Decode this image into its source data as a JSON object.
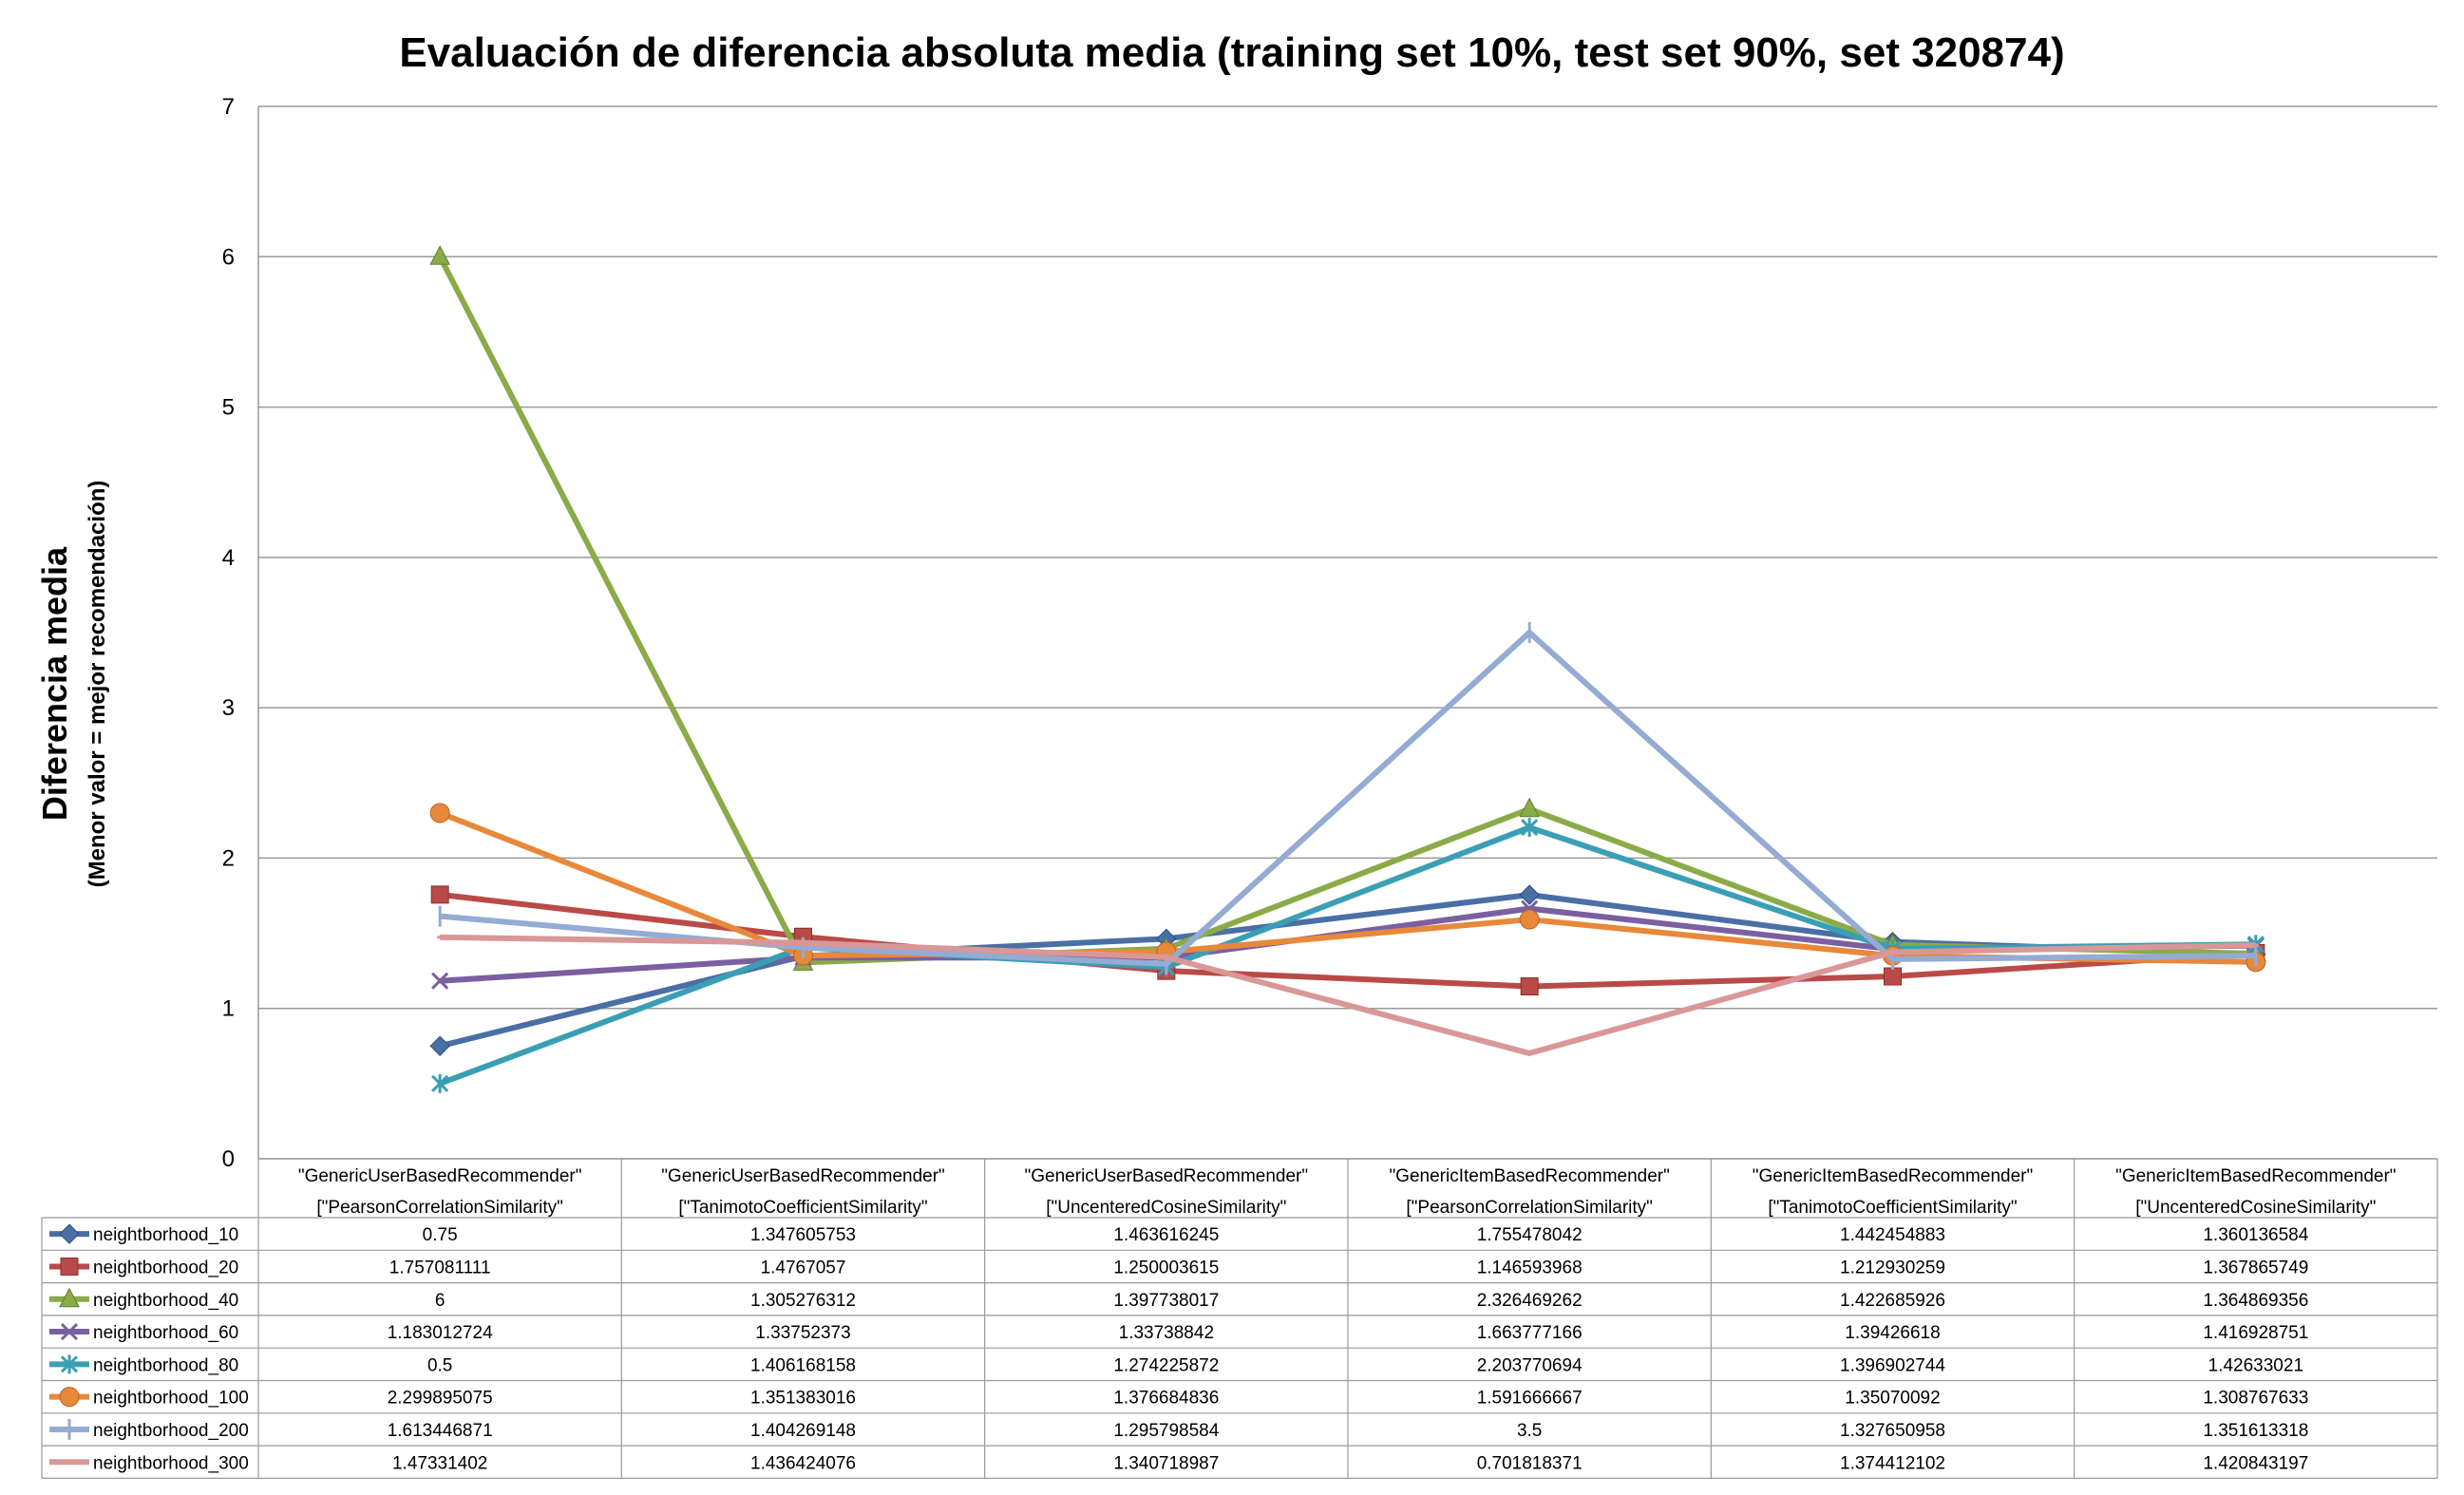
{
  "chart_data": {
    "type": "line",
    "title": "Evaluación de diferencia absoluta media (training set 10%, test set 90%, set 320874)",
    "ylabel": "Diferencia media",
    "ylabel_sub": "(Menor valor = mejor recomendación)",
    "xlabel": "",
    "ylim": [
      0,
      7
    ],
    "yticks": [
      0,
      1,
      2,
      3,
      4,
      5,
      6,
      7
    ],
    "grid": true,
    "legend_placement": "data-table-bottom",
    "categories": [
      [
        "\"GenericUserBasedRecommender\"",
        "[\"PearsonCorrelationSimilarity\""
      ],
      [
        "\"GenericUserBasedRecommender\"",
        "[\"TanimotoCoefficientSimilarity\""
      ],
      [
        "\"GenericUserBasedRecommender\"",
        "[\"UncenteredCosineSimilarity\""
      ],
      [
        "\"GenericItemBasedRecommender\"",
        "[\"PearsonCorrelationSimilarity\""
      ],
      [
        "\"GenericItemBasedRecommender\"",
        "[\"TanimotoCoefficientSimilarity\""
      ],
      [
        "\"GenericItemBasedRecommender\"",
        "[\"UncenteredCosineSimilarity\""
      ]
    ],
    "series": [
      {
        "name": "neightborhood_10",
        "color": "#4a6fa5",
        "marker": "diamond",
        "labels": [
          "0.75",
          "1.347605753",
          "1.463616245",
          "1.755478042",
          "1.442454883",
          "1.360136584"
        ],
        "values": [
          0.75,
          1.347605753,
          1.463616245,
          1.755478042,
          1.442454883,
          1.360136584
        ]
      },
      {
        "name": "neightborhood_20",
        "color": "#b94a48",
        "marker": "square",
        "labels": [
          "1.757081111",
          "1.4767057",
          "1.250003615",
          "1.146593968",
          "1.212930259",
          "1.367865749"
        ],
        "values": [
          1.757081111,
          1.4767057,
          1.250003615,
          1.146593968,
          1.212930259,
          1.367865749
        ]
      },
      {
        "name": "neightborhood_40",
        "color": "#8aab47",
        "marker": "triangle",
        "labels": [
          "6",
          "1.305276312",
          "1.397738017",
          "2.326469262",
          "1.422685926",
          "1.364869356"
        ],
        "values": [
          6,
          1.305276312,
          1.397738017,
          2.326469262,
          1.422685926,
          1.364869356
        ]
      },
      {
        "name": "neightborhood_60",
        "color": "#7b5fa0",
        "marker": "x",
        "labels": [
          "1.183012724",
          "1.33752373",
          "1.33738842",
          "1.663777166",
          "1.39426618",
          "1.416928751"
        ],
        "values": [
          1.183012724,
          1.33752373,
          1.33738842,
          1.663777166,
          1.39426618,
          1.416928751
        ]
      },
      {
        "name": "neightborhood_80",
        "color": "#3a9fb5",
        "marker": "star",
        "labels": [
          "0.5",
          "1.406168158",
          "1.274225872",
          "2.203770694",
          "1.396902744",
          "1.42633021"
        ],
        "values": [
          0.5,
          1.406168158,
          1.274225872,
          2.203770694,
          1.396902744,
          1.42633021
        ]
      },
      {
        "name": "neightborhood_100",
        "color": "#e8883a",
        "marker": "circle",
        "labels": [
          "2.299895075",
          "1.351383016",
          "1.376684836",
          "1.591666667",
          "1.35070092",
          "1.308767633"
        ],
        "values": [
          2.299895075,
          1.351383016,
          1.376684836,
          1.591666667,
          1.35070092,
          1.308767633
        ]
      },
      {
        "name": "neightborhood_200",
        "color": "#94abd4",
        "marker": "plus",
        "labels": [
          "1.613446871",
          "1.404269148",
          "1.295798584",
          "3.5",
          "1.327650958",
          "1.351613318"
        ],
        "values": [
          1.613446871,
          1.404269148,
          1.295798584,
          3.5,
          1.327650958,
          1.351613318
        ]
      },
      {
        "name": "neightborhood_300",
        "color": "#d99797",
        "marker": "dash",
        "labels": [
          "1.47331402",
          "1.436424076",
          "1.340718987",
          "0.701818371",
          "1.374412102",
          "1.420843197"
        ],
        "values": [
          1.47331402,
          1.436424076,
          1.340718987,
          0.701818371,
          1.374412102,
          1.420843197
        ]
      }
    ]
  }
}
